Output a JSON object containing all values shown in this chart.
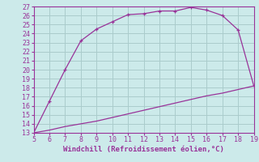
{
  "xlabel": "Windchill (Refroidissement éolien,°C)",
  "xlim": [
    5,
    19
  ],
  "ylim": [
    13,
    27
  ],
  "xticks": [
    5,
    6,
    7,
    8,
    9,
    10,
    11,
    12,
    13,
    14,
    15,
    16,
    17,
    18,
    19
  ],
  "yticks": [
    13,
    14,
    15,
    16,
    17,
    18,
    19,
    20,
    21,
    22,
    23,
    24,
    25,
    26,
    27
  ],
  "upper_curve_x": [
    5,
    6,
    7,
    8,
    9,
    10,
    11,
    12,
    13,
    14,
    15,
    16,
    17,
    18,
    19
  ],
  "upper_curve_y": [
    13.0,
    16.5,
    20.0,
    23.2,
    24.5,
    25.3,
    26.1,
    26.2,
    26.5,
    26.5,
    26.9,
    26.6,
    26.0,
    24.4,
    18.2
  ],
  "lower_curve_x": [
    5,
    6,
    7,
    8,
    9,
    10,
    11,
    12,
    13,
    14,
    15,
    16,
    17,
    18,
    19
  ],
  "lower_curve_y": [
    13.0,
    13.3,
    13.7,
    14.0,
    14.3,
    14.7,
    15.1,
    15.5,
    15.9,
    16.3,
    16.7,
    17.1,
    17.4,
    17.8,
    18.2
  ],
  "line_color": "#993399",
  "marker_color": "#993399",
  "bg_color": "#cceaea",
  "grid_color": "#aacccc",
  "axis_label_color": "#993399",
  "tick_label_color": "#993399",
  "font_size_tick": 6,
  "font_size_xlabel": 6.5
}
